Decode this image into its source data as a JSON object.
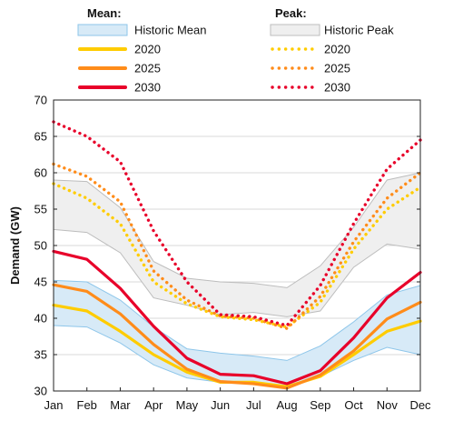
{
  "chart_data": {
    "type": "line",
    "xlabel": "",
    "ylabel": "Demand (GW)",
    "categories": [
      "Jan",
      "Feb",
      "Mar",
      "Apr",
      "May",
      "Jun",
      "Jul",
      "Aug",
      "Sep",
      "Oct",
      "Nov",
      "Dec"
    ],
    "ylim": [
      30,
      70
    ],
    "yticks": [
      30,
      35,
      40,
      45,
      50,
      55,
      60,
      65,
      70
    ],
    "grid": true,
    "legend_placement": "top",
    "legend_groups": [
      {
        "title": "Mean:",
        "items": [
          "Historic Mean",
          "2020",
          "2025",
          "2030"
        ]
      },
      {
        "title": "Peak:",
        "items": [
          "Historic Peak",
          "2020",
          "2025",
          "2030"
        ]
      }
    ],
    "colors": {
      "2020": "#ffcc00",
      "2025": "#ff8c1a",
      "2030": "#e8002a",
      "historic_mean_fill": "#d7eaf7",
      "historic_mean_edge": "#8ec6ea",
      "historic_peak_fill": "#efefef",
      "historic_peak_edge": "#bdbdbd"
    },
    "bands": [
      {
        "name": "Historic Mean",
        "style": "mean",
        "upper": [
          45.2,
          45.0,
          42.5,
          38.8,
          35.8,
          35.2,
          34.8,
          34.2,
          36.2,
          39.5,
          43.2,
          44.5
        ],
        "lower": [
          39.0,
          38.8,
          36.6,
          33.6,
          31.8,
          31.2,
          31.0,
          30.8,
          32.0,
          34.2,
          36.0,
          35.0
        ]
      },
      {
        "name": "Historic Peak",
        "style": "peak",
        "upper": [
          59.0,
          58.8,
          55.2,
          47.8,
          45.5,
          45.0,
          44.8,
          44.2,
          47.2,
          52.5,
          59.0,
          60.0
        ],
        "lower": [
          52.2,
          51.8,
          49.0,
          42.8,
          41.8,
          40.5,
          40.8,
          40.2,
          41.0,
          47.0,
          50.2,
          49.5
        ]
      }
    ],
    "series": [
      {
        "name": "2020",
        "kind": "mean",
        "values": [
          41.8,
          41.0,
          38.2,
          35.0,
          32.6,
          31.2,
          31.2,
          30.6,
          32.0,
          35.0,
          38.2,
          39.6
        ]
      },
      {
        "name": "2025",
        "kind": "mean",
        "values": [
          44.6,
          43.7,
          40.6,
          36.4,
          33.0,
          31.3,
          31.0,
          30.4,
          32.2,
          35.5,
          39.9,
          42.2
        ]
      },
      {
        "name": "2030",
        "kind": "mean",
        "values": [
          49.2,
          48.1,
          44.1,
          38.9,
          34.5,
          32.3,
          32.1,
          31.0,
          32.8,
          37.3,
          42.8,
          46.3
        ]
      },
      {
        "name": "2020",
        "kind": "peak",
        "values": [
          58.5,
          56.5,
          53.0,
          45.0,
          42.0,
          40.2,
          39.8,
          38.8,
          42.2,
          49.5,
          55.0,
          58.0
        ]
      },
      {
        "name": "2025",
        "kind": "peak",
        "values": [
          61.2,
          59.5,
          56.0,
          46.5,
          42.5,
          40.3,
          40.0,
          38.6,
          43.0,
          50.5,
          56.5,
          60.0
        ]
      },
      {
        "name": "2030",
        "kind": "peak",
        "values": [
          67.0,
          65.0,
          61.5,
          52.0,
          45.0,
          40.5,
          40.2,
          39.0,
          44.5,
          53.0,
          60.5,
          64.5
        ]
      }
    ]
  }
}
